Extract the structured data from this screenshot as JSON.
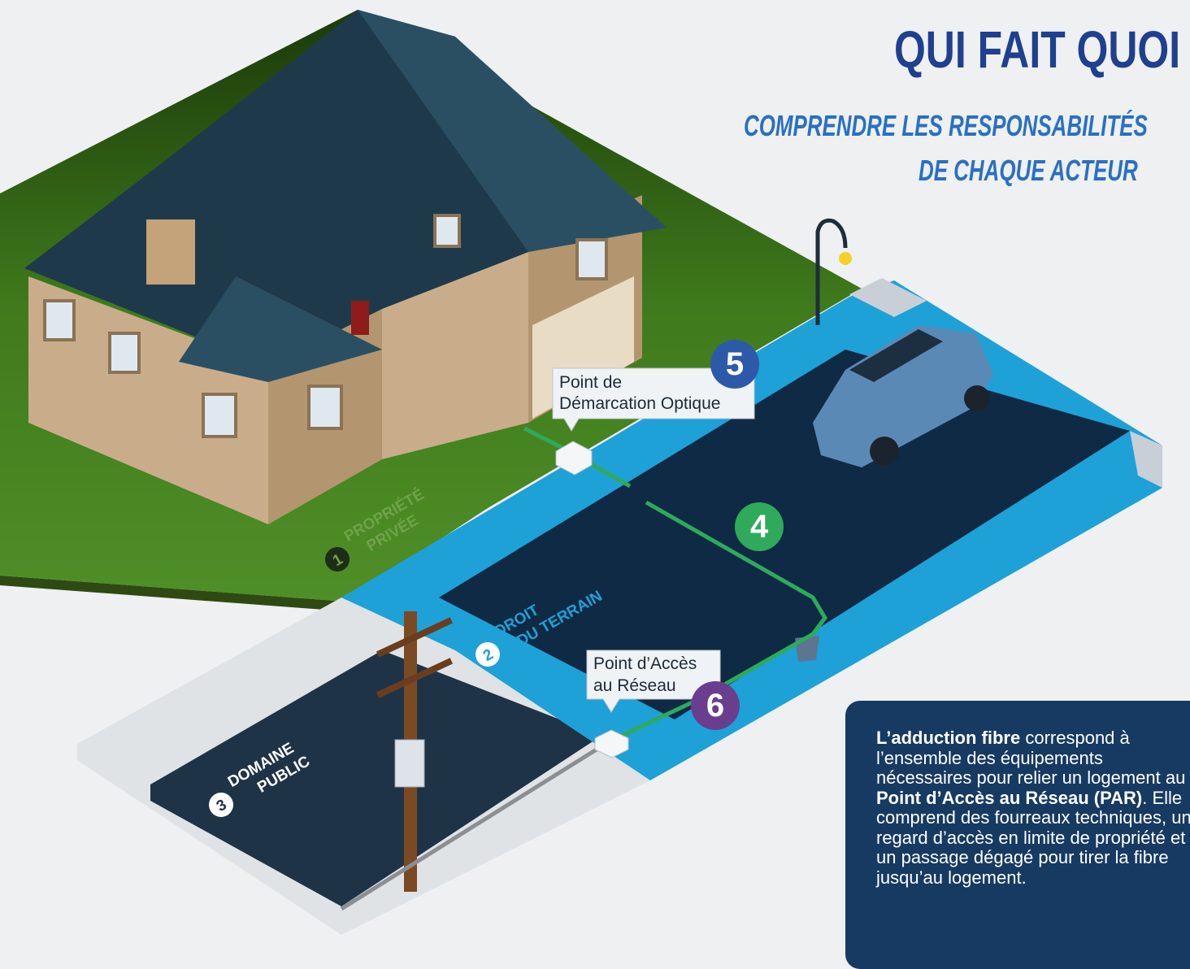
{
  "header": {
    "title": "QUI FAIT QUOI",
    "subtitle": [
      "COMPRENDRE LES RESPONSABILITÉS",
      "DE CHAQUE ACTEUR"
    ]
  },
  "zones": [
    {
      "number": "1",
      "label": [
        "PROPRIÉTÉ",
        "PRIVÉE"
      ]
    },
    {
      "number": "2",
      "label": [
        "DROIT",
        "DU TERRAIN"
      ]
    },
    {
      "number": "3",
      "label": [
        "DOMAINE",
        "PUBLIC"
      ]
    }
  ],
  "markers": [
    {
      "number": "4"
    },
    {
      "number": "5",
      "callout": [
        "Point de",
        "Démarcation Optique"
      ]
    },
    {
      "number": "6",
      "callout": [
        "Point d’Accès",
        "au Réseau"
      ]
    }
  ],
  "info": {
    "segments": [
      {
        "text": "L’adduction fibre",
        "bold": true
      },
      {
        "text": " correspond à l’ensemble des équipements nécessaires pour relier un logement au ",
        "bold": false
      },
      {
        "text": "Point d’Accès au Réseau (PAR)",
        "bold": true
      },
      {
        "text": ". Elle comprend des fourreaux techniques, un regard d’accès en limite de propriété et un passage dégagé pour tirer la fibre jusqu’au logement.",
        "bold": false
      }
    ]
  }
}
